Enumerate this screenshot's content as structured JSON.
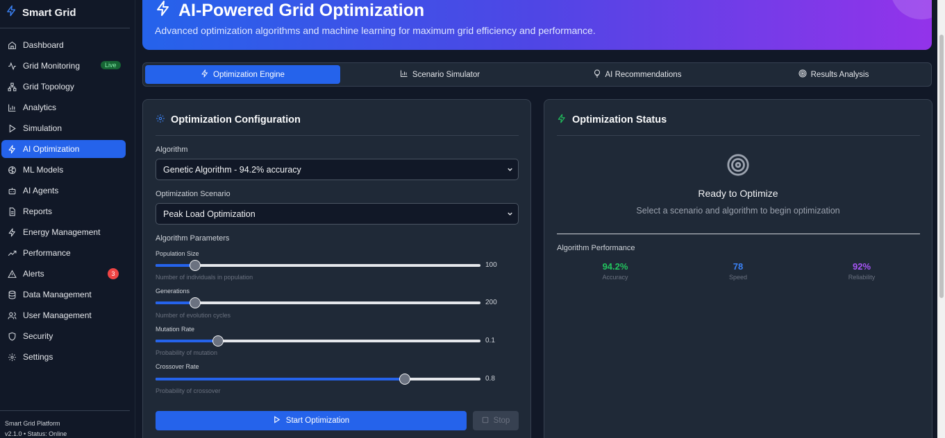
{
  "brand": {
    "name": "Smart Grid"
  },
  "sidebar": {
    "items": [
      {
        "label": "Dashboard",
        "icon": "home-icon"
      },
      {
        "label": "Grid Monitoring",
        "icon": "activity-icon",
        "badge": "Live"
      },
      {
        "label": "Grid Topology",
        "icon": "network-icon"
      },
      {
        "label": "Analytics",
        "icon": "bar-chart-icon"
      },
      {
        "label": "Simulation",
        "icon": "play-icon"
      },
      {
        "label": "AI Optimization",
        "icon": "zap-icon",
        "active": true
      },
      {
        "label": "ML Models",
        "icon": "brain-icon"
      },
      {
        "label": "AI Agents",
        "icon": "bot-icon"
      },
      {
        "label": "Reports",
        "icon": "file-text-icon"
      },
      {
        "label": "Energy Management",
        "icon": "zap-icon"
      },
      {
        "label": "Performance",
        "icon": "trending-up-icon"
      },
      {
        "label": "Alerts",
        "icon": "alert-triangle-icon",
        "count": "3"
      },
      {
        "label": "Data Management",
        "icon": "database-icon"
      },
      {
        "label": "User Management",
        "icon": "users-icon"
      },
      {
        "label": "Security",
        "icon": "shield-icon"
      },
      {
        "label": "Settings",
        "icon": "gear-icon"
      }
    ],
    "footer": {
      "platform": "Smart Grid Platform",
      "version_status": "v2.1.0 • Status: Online"
    }
  },
  "header": {
    "title": "AI-Powered Grid Optimization",
    "subtitle": "Advanced optimization algorithms and machine learning for maximum grid efficiency and performance."
  },
  "tabs": [
    {
      "label": "Optimization Engine",
      "icon": "zap-icon",
      "active": true
    },
    {
      "label": "Scenario Simulator",
      "icon": "bar-chart-icon"
    },
    {
      "label": "AI Recommendations",
      "icon": "lightbulb-icon"
    },
    {
      "label": "Results Analysis",
      "icon": "target-icon"
    }
  ],
  "config": {
    "title": "Optimization Configuration",
    "algorithm_label": "Algorithm",
    "algorithm_value": "Genetic Algorithm - 94.2% accuracy",
    "scenario_label": "Optimization Scenario",
    "scenario_value": "Peak Load Optimization",
    "params_label": "Algorithm Parameters",
    "params": [
      {
        "label": "Population Size",
        "value": "100",
        "hint": "Number of individuals in population",
        "fraction": 0.122
      },
      {
        "label": "Generations",
        "value": "200",
        "hint": "Number of evolution cycles",
        "fraction": 0.122
      },
      {
        "label": "Mutation Rate",
        "value": "0.1",
        "hint": "Probability of mutation",
        "fraction": 0.192
      },
      {
        "label": "Crossover Rate",
        "value": "0.8",
        "hint": "Probability of crossover",
        "fraction": 0.767
      }
    ],
    "start_label": "Start Optimization",
    "stop_label": "Stop"
  },
  "status": {
    "title": "Optimization Status",
    "ready_title": "Ready to Optimize",
    "ready_sub": "Select a scenario and algorithm to begin optimization",
    "perf_label": "Algorithm Performance",
    "metrics": [
      {
        "value": "94.2%",
        "label": "Accuracy",
        "color": "#22c55e"
      },
      {
        "value": "78",
        "label": "Speed",
        "color": "#3b82f6"
      },
      {
        "value": "92%",
        "label": "Reliability",
        "color": "#a855f7"
      }
    ]
  },
  "colors": {
    "accent": "#2563eb",
    "panel": "#1f2937",
    "background": "#111827"
  }
}
